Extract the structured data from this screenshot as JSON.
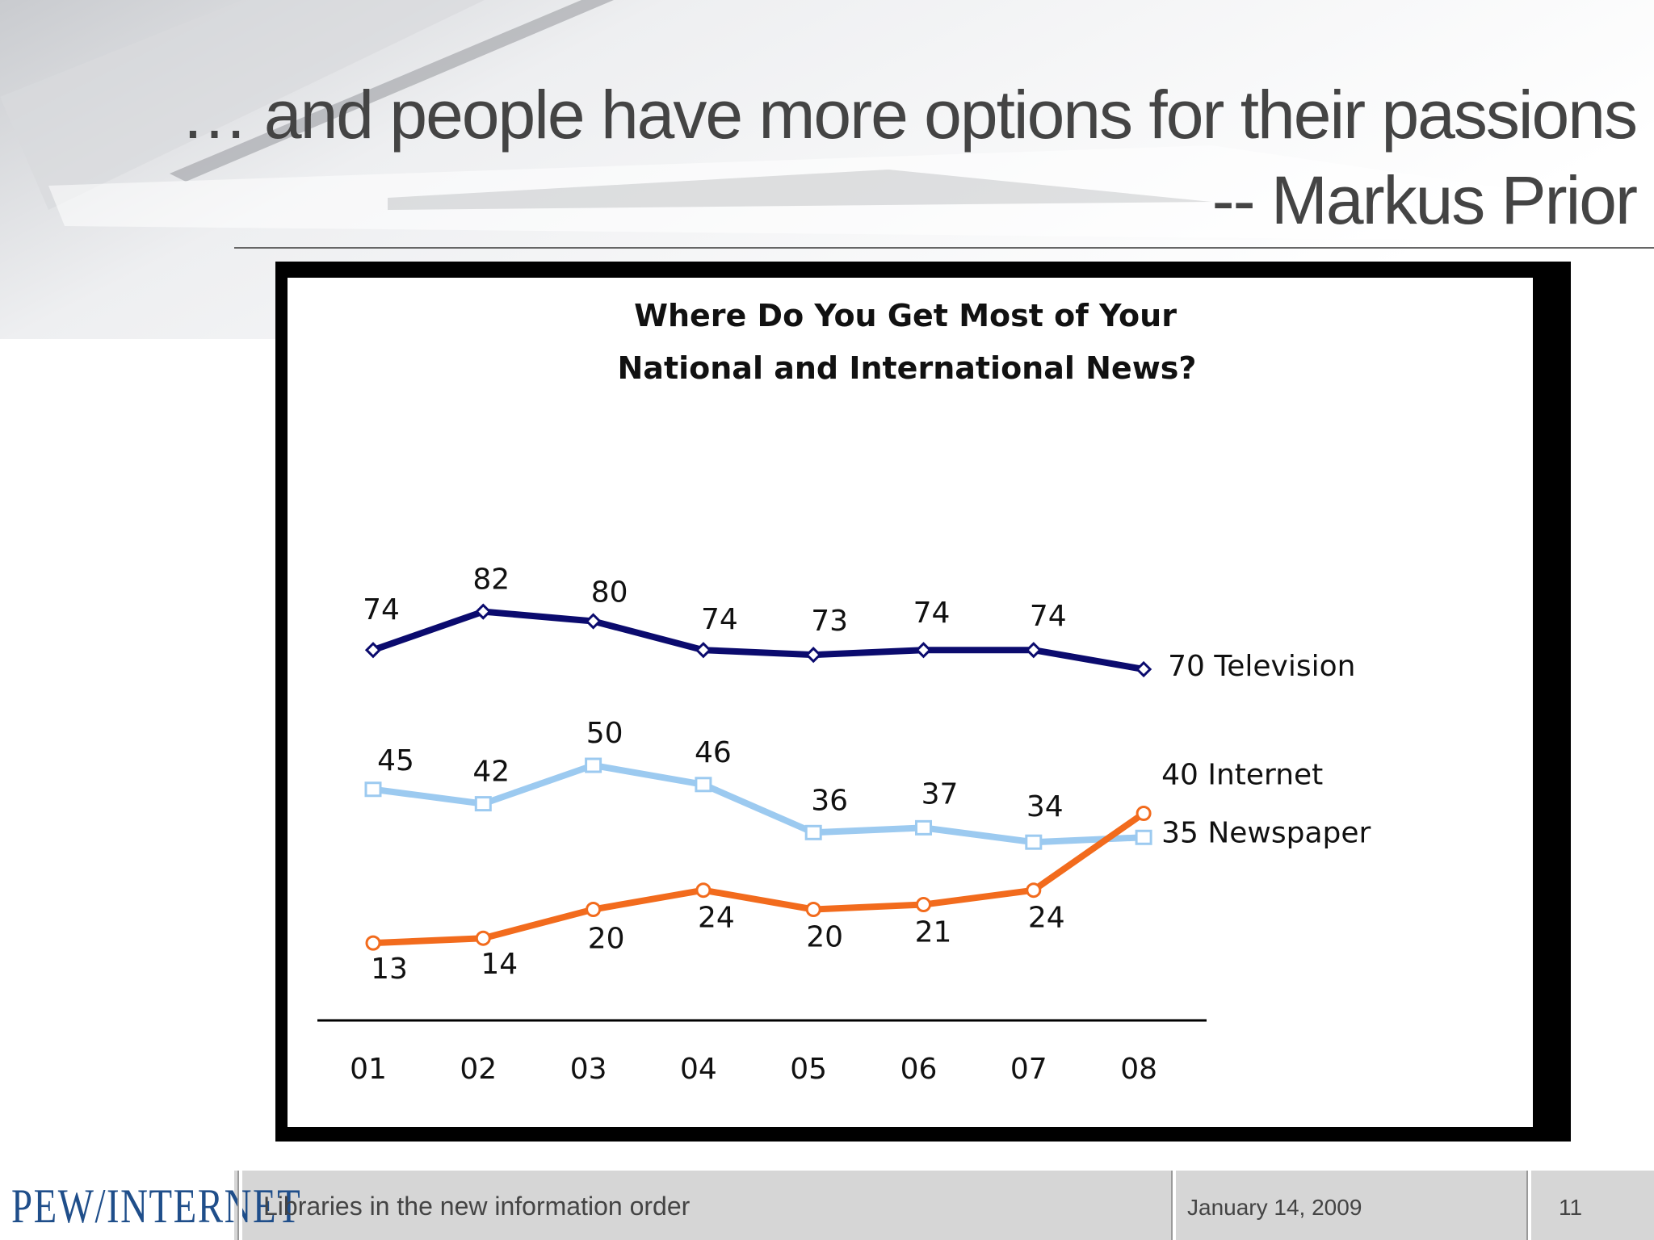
{
  "slide": {
    "title_line1": "… and people have more options for their passions",
    "title_line2": "-- Markus Prior"
  },
  "footer": {
    "logo": "PEW/INTERNET",
    "presentation_title": "Libraries in the new information order",
    "date": "January 14, 2009",
    "page_number": "11"
  },
  "colors": {
    "television": "#0b0b6e",
    "internet": "#f26b1d",
    "newspaper": "#9ccaf0"
  },
  "chart_data": {
    "type": "line",
    "title_line1": "Where Do You Get Most of Your",
    "title_line2": "National and International News?",
    "categories": [
      "01",
      "02",
      "03",
      "04",
      "05",
      "06",
      "07",
      "08"
    ],
    "series": [
      {
        "name": "Television",
        "end_label": "70 Television",
        "marker": "diamond",
        "values": [
          74,
          82,
          80,
          74,
          73,
          74,
          74,
          70
        ]
      },
      {
        "name": "Newspaper",
        "end_label": "35 Newspaper",
        "marker": "square",
        "values": [
          45,
          42,
          50,
          46,
          36,
          37,
          34,
          35
        ]
      },
      {
        "name": "Internet",
        "end_label": "40 Internet",
        "marker": "circle",
        "values": [
          13,
          14,
          20,
          24,
          20,
          21,
          24,
          40
        ]
      }
    ],
    "ylim": [
      10,
      85
    ],
    "grid": false,
    "legend": "end-of-line labels"
  }
}
